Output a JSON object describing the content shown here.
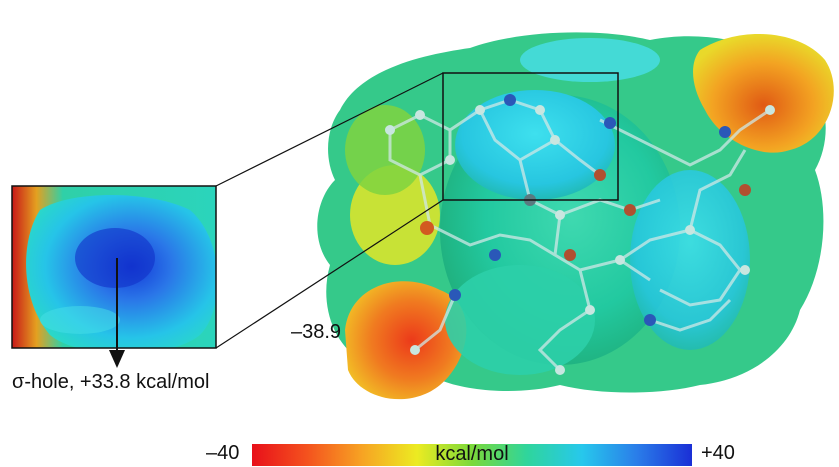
{
  "annotations": {
    "sigma_hole": "σ-hole, +33.8 kcal/mol",
    "min_value": "–38.9"
  },
  "colorbar": {
    "min_label": "–40",
    "max_label": "+40",
    "unit_label": "kcal/mol",
    "colors": [
      "#e8101a",
      "#f4521e",
      "#f7a323",
      "#eceb22",
      "#7ad93a",
      "#2fd59c",
      "#27c8ec",
      "#2a7de9",
      "#1a2fd6"
    ]
  }
}
